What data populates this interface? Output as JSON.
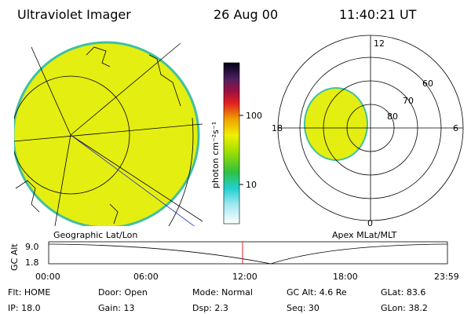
{
  "header": {
    "instrument": "Ultraviolet Imager",
    "date": "26 Aug 00",
    "time": "11:40:21 UT"
  },
  "colorbar": {
    "label": "photon cm⁻²s⁻¹",
    "ticks": [
      "100",
      "10"
    ]
  },
  "polar": {
    "mlt_labels": [
      "12",
      "18",
      "6",
      "0"
    ],
    "lat_labels": [
      "60",
      "70",
      "80"
    ]
  },
  "panel_titles": [
    "Geographic Lat/Lon",
    "Apex MLat/MLT"
  ],
  "orbit_plot": {
    "ylabel": "GC Alt",
    "yticks": [
      "9.0",
      "1.8"
    ],
    "xticks": [
      "00:00",
      "06:00",
      "12:00",
      "18:00",
      "23:59"
    ]
  },
  "info": [
    [
      "Flt: HOME",
      "IP: 18.0"
    ],
    [
      "Door: Open",
      "Gain: 13"
    ],
    [
      "Mode: Normal",
      "Dsp: 2.3"
    ],
    [
      "GC Alt: 4.6 Re",
      "Seq: 30"
    ],
    [
      "GLat: 83.6",
      "GLon: 38.2"
    ]
  ]
}
